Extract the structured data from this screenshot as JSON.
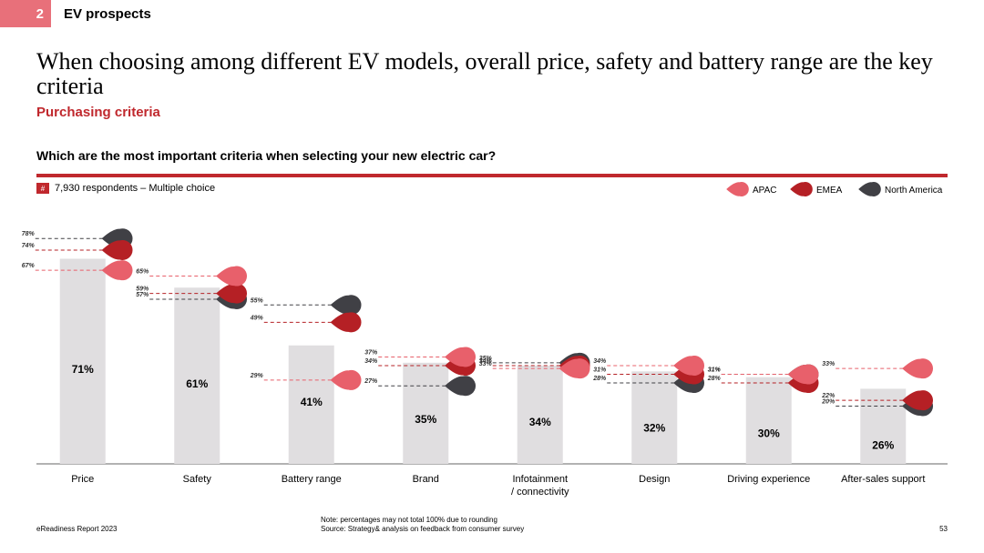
{
  "header": {
    "section_number": "2",
    "section_title": "EV prospects"
  },
  "title": "When choosing among different EV models, overall price, safety and battery range are the key criteria",
  "subtitle": "Purchasing criteria",
  "question": "Which are the most important criteria when selecting your new electric car?",
  "respondents": {
    "hash": "#",
    "text": "7,930 respondents – Multiple choice"
  },
  "colors": {
    "accent": "#c0282d",
    "apac": "#e8606b",
    "emea": "#b52025",
    "north_america": "#404045",
    "bar": "#e0dee0"
  },
  "chart_data": {
    "type": "bar",
    "categories": [
      "Price",
      "Safety",
      "Battery range",
      "Brand",
      "Infotainment\n/ connectivity",
      "Design",
      "Driving experience",
      "After-sales support"
    ],
    "values": [
      71,
      61,
      41,
      35,
      34,
      32,
      30,
      26
    ],
    "value_labels": [
      "71%",
      "61%",
      "41%",
      "35%",
      "34%",
      "32%",
      "30%",
      "26%"
    ],
    "series": [
      {
        "name": "APAC",
        "values": [
          67,
          65,
          29,
          37,
          33,
          34,
          31,
          33
        ]
      },
      {
        "name": "EMEA",
        "values": [
          74,
          59,
          49,
          34,
          34,
          31,
          28,
          22
        ]
      },
      {
        "name": "North America",
        "values": [
          78,
          57,
          55,
          27,
          35,
          28,
          31,
          20
        ]
      }
    ],
    "ylim": [
      0,
      85
    ],
    "title": "",
    "xlabel": "",
    "ylabel": ""
  },
  "legend": [
    {
      "name": "APAC"
    },
    {
      "name": "EMEA"
    },
    {
      "name": "North America"
    }
  ],
  "footer": {
    "report": "eReadiness Report 2023",
    "note": "Note: percentages may not total 100% due to rounding",
    "source": "Source: Strategy& analysis on feedback from consumer survey",
    "page": "53"
  }
}
